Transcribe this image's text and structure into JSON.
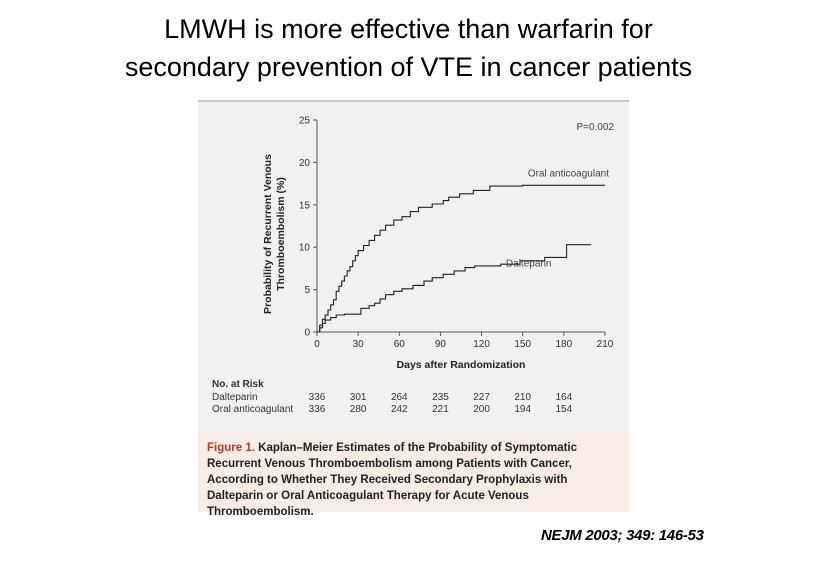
{
  "slide": {
    "title_line1": "LMWH is more effective than warfarin for",
    "title_line2": "secondary prevention of VTE in cancer patients",
    "citation": "NEJM 2003; 349: 146-53"
  },
  "caption": {
    "label": "Figure 1.",
    "text": "Kaplan–Meier Estimates of the Probability of Symptomatic Recurrent Venous Thromboembolism among Patients with Cancer, According to Whether They Received Secondary Prophylaxis with Dalteparin or Oral Anticoagulant Therapy for Acute Venous Thromboembolism."
  },
  "chart_data": {
    "type": "line",
    "title": "",
    "xlabel": "Days after Randomization",
    "ylabel_line1": "Probability of Recurrent Venous",
    "ylabel_line2": "Thromboembolism (%)",
    "xlim": [
      0,
      210
    ],
    "ylim": [
      0,
      25
    ],
    "x_ticks": [
      0,
      30,
      60,
      90,
      120,
      150,
      180,
      210
    ],
    "y_ticks": [
      0,
      5,
      10,
      15,
      20,
      25
    ],
    "annotation": "P=0.002",
    "colors": {
      "line": "#222222",
      "axis": "#555555"
    },
    "series": [
      {
        "name": "Oral anticoagulant",
        "points": [
          [
            0,
            0
          ],
          [
            2,
            0.8
          ],
          [
            4,
            1.5
          ],
          [
            6,
            2
          ],
          [
            8,
            2.6
          ],
          [
            10,
            3.2
          ],
          [
            12,
            3.8
          ],
          [
            14,
            4.8
          ],
          [
            16,
            5.4
          ],
          [
            18,
            6
          ],
          [
            20,
            6.6
          ],
          [
            22,
            7.2
          ],
          [
            24,
            7.7
          ],
          [
            26,
            8.4
          ],
          [
            28,
            9
          ],
          [
            30,
            9.6
          ],
          [
            34,
            10.2
          ],
          [
            38,
            10.8
          ],
          [
            42,
            11.4
          ],
          [
            46,
            12
          ],
          [
            50,
            12.6
          ],
          [
            56,
            13.2
          ],
          [
            62,
            13.6
          ],
          [
            68,
            14.2
          ],
          [
            74,
            14.7
          ],
          [
            84,
            15.1
          ],
          [
            92,
            15.5
          ],
          [
            96,
            15.9
          ],
          [
            104,
            16.3
          ],
          [
            114,
            16.7
          ],
          [
            126,
            17.2
          ],
          [
            140,
            17.2
          ],
          [
            150,
            17.3
          ],
          [
            175,
            17.3
          ],
          [
            210,
            17.3
          ]
        ],
        "label": "Oral anticoagulant"
      },
      {
        "name": "Dalteparin",
        "points": [
          [
            0,
            0
          ],
          [
            2,
            0.5
          ],
          [
            4,
            1
          ],
          [
            6,
            1.4
          ],
          [
            10,
            1.7
          ],
          [
            14,
            2
          ],
          [
            20,
            2.1
          ],
          [
            28,
            2.1
          ],
          [
            32,
            2.8
          ],
          [
            38,
            3.1
          ],
          [
            42,
            3.4
          ],
          [
            46,
            3.9
          ],
          [
            50,
            4.4
          ],
          [
            56,
            4.8
          ],
          [
            62,
            5.1
          ],
          [
            70,
            5.5
          ],
          [
            78,
            6
          ],
          [
            84,
            6.4
          ],
          [
            92,
            6.8
          ],
          [
            100,
            7.2
          ],
          [
            108,
            7.6
          ],
          [
            115,
            7.8
          ],
          [
            125,
            7.8
          ],
          [
            134,
            8
          ],
          [
            148,
            8.4
          ],
          [
            166,
            8.8
          ],
          [
            182,
            10.3
          ],
          [
            200,
            10.3
          ]
        ],
        "label": "Dalteparin"
      }
    ],
    "risk_table": {
      "title": "No. at Risk",
      "rows": [
        {
          "name": "Dalteparin",
          "values": [
            "336",
            "301",
            "264",
            "235",
            "227",
            "210",
            "164"
          ]
        },
        {
          "name": "Oral anticoagulant",
          "values": [
            "336",
            "280",
            "242",
            "221",
            "200",
            "194",
            "154"
          ]
        }
      ]
    }
  }
}
